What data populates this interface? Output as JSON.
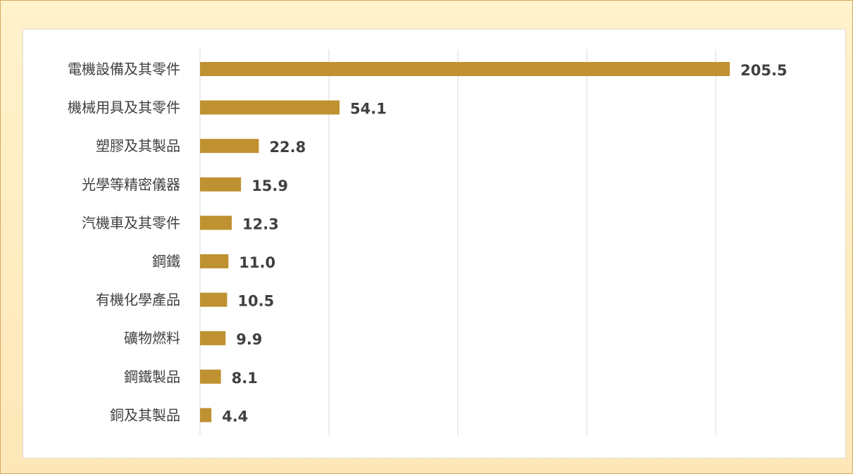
{
  "chart_data": {
    "type": "bar",
    "orientation": "horizontal",
    "title": "",
    "xlabel": "",
    "ylabel": "",
    "categories": [
      "電機設備及其零件",
      "機械用具及其零件",
      "塑膠及其製品",
      "光學等精密儀器",
      "汽機車及其零件",
      "鋼鐵",
      "有機化學產品",
      "礦物燃料",
      "鋼鐵製品",
      "銅及其製品"
    ],
    "values": [
      205.5,
      54.1,
      22.8,
      15.9,
      12.3,
      11.0,
      10.5,
      9.9,
      8.1,
      4.4
    ],
    "value_labels": [
      "205.5",
      "54.1",
      "22.8",
      "15.9",
      "12.3",
      "11.0",
      "10.5",
      "9.9",
      "8.1",
      "4.4"
    ],
    "xlim": [
      0,
      250
    ],
    "gridlines": [
      0,
      50,
      100,
      150,
      200
    ],
    "grid": true,
    "legend": "none",
    "bar_color": "#bf9130"
  }
}
